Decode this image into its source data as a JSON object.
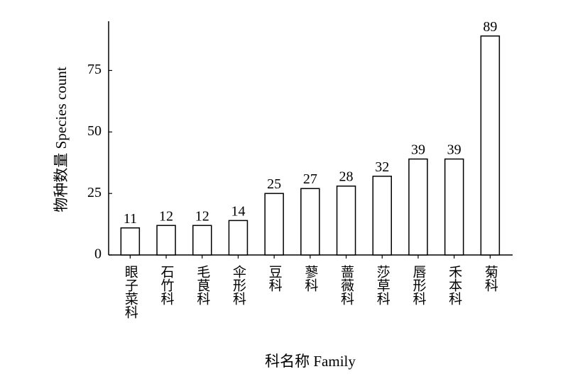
{
  "chart_data": {
    "type": "bar",
    "x_label": "科名称 Family",
    "y_label": "物种数量 Species count",
    "categories": [
      "眼子菜科",
      "石竹科",
      "毛茛科",
      "伞形科",
      "豆科",
      "蓼科",
      "蔷薇科",
      "莎草科",
      "唇形科",
      "禾本科",
      "菊科"
    ],
    "values": [
      11,
      12,
      12,
      14,
      25,
      27,
      28,
      32,
      39,
      39,
      89
    ],
    "color": "#ffffff",
    "ylim": [
      0,
      95
    ],
    "yticks": [
      0,
      25,
      50,
      75
    ],
    "grid": false
  }
}
